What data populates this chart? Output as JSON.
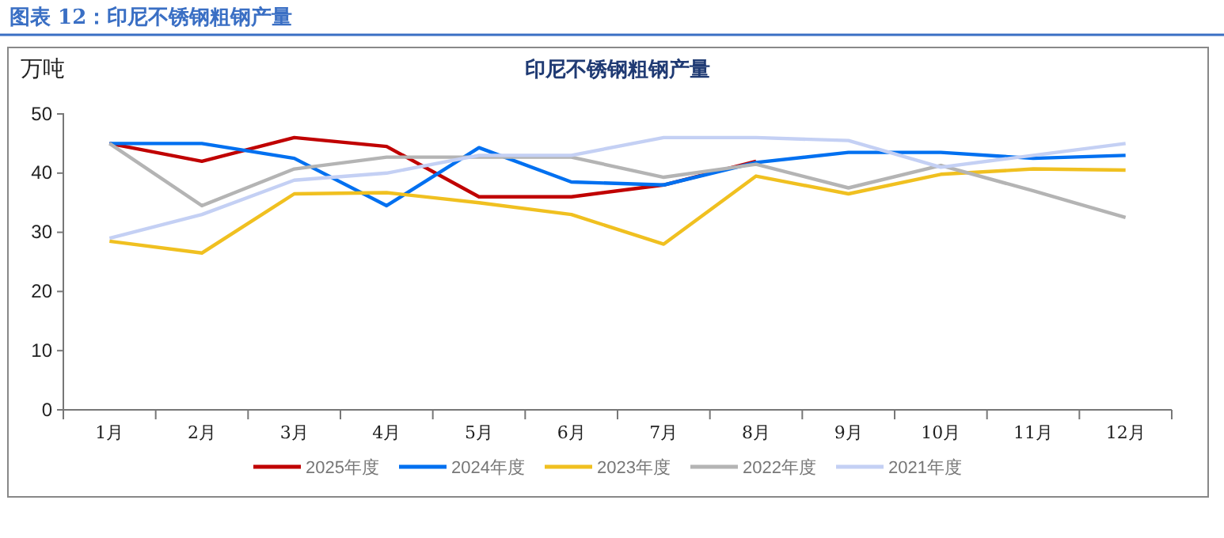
{
  "chart_data": {
    "type": "line",
    "title": "印尼不锈钢粗钢产量",
    "ylabel": "万吨",
    "annotations": [
      "图表 12：印尼不锈钢粗钢产量"
    ],
    "categories": [
      "1月",
      "2月",
      "3月",
      "4月",
      "5月",
      "6月",
      "7月",
      "8月",
      "9月",
      "10月",
      "11月",
      "12月"
    ],
    "ylim": [
      0,
      50
    ],
    "yticks": [
      0,
      10,
      20,
      30,
      40,
      50
    ],
    "grid": false,
    "legend": "bottom",
    "marker": "none",
    "line_style": "solid",
    "series": [
      {
        "name": "2025年度",
        "color": "#c00000",
        "values": [
          45,
          42,
          46,
          44.5,
          36,
          36,
          38,
          42,
          null,
          null,
          null,
          null
        ]
      },
      {
        "name": "2024年度",
        "color": "#0070f0",
        "values": [
          45,
          45,
          42.5,
          34.5,
          44.3,
          38.5,
          38,
          41.8,
          43.5,
          43.5,
          42.5,
          43
        ]
      },
      {
        "name": "2023年度",
        "color": "#f0c020",
        "values": [
          28.5,
          26.5,
          36.5,
          36.7,
          35,
          33,
          28,
          39.5,
          36.5,
          39.8,
          40.7,
          40.5
        ]
      },
      {
        "name": "2022年度",
        "color": "#b4b4b4",
        "values": [
          45,
          34.5,
          40.7,
          42.7,
          42.7,
          42.7,
          39.3,
          41.5,
          37.5,
          41.3,
          37,
          32.5
        ]
      },
      {
        "name": "2021年度",
        "color": "#c4d0f4",
        "values": [
          29,
          33,
          38.8,
          40,
          43,
          43,
          46,
          46,
          45.5,
          41,
          43,
          45
        ]
      }
    ]
  }
}
